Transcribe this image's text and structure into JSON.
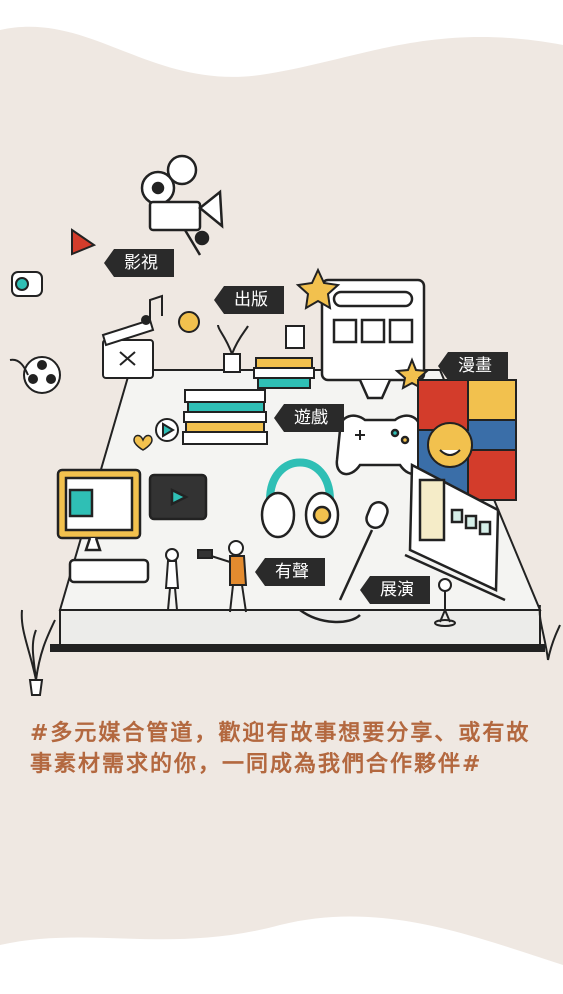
{
  "labels": {
    "film": "影視",
    "publishing": "出版",
    "games": "遊戲",
    "comics": "漫畫",
    "audio": "有聲",
    "exhibition": "展演"
  },
  "caption": "#多元媒合管道，歡迎有故事想要分享、或有故事素材需求的你，一同成為我們合作夥伴#",
  "colors": {
    "background": "#efe8e2",
    "caption": "#b3683f",
    "tag": "#2a2a2a"
  }
}
